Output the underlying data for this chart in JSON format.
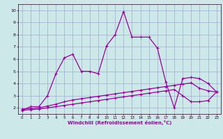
{
  "xlabel": "Windchill (Refroidissement éolien,°C)",
  "bg_color": "#cce8e8",
  "grid_color": "#9999cc",
  "line_color": "#990099",
  "xlim": [
    -0.5,
    23.5
  ],
  "ylim": [
    1.5,
    10.5
  ],
  "xticks": [
    0,
    1,
    2,
    3,
    4,
    5,
    6,
    7,
    8,
    9,
    10,
    11,
    12,
    13,
    14,
    15,
    16,
    17,
    18,
    19,
    20,
    21,
    22,
    23
  ],
  "yticks": [
    2,
    3,
    4,
    5,
    6,
    7,
    8,
    9,
    10
  ],
  "line1_x": [
    0,
    1,
    2,
    3,
    4,
    5,
    6,
    7,
    8,
    9,
    10,
    11,
    12,
    13,
    14,
    15,
    16,
    17,
    18,
    19,
    20,
    21,
    22,
    23
  ],
  "line1_y": [
    1.8,
    2.1,
    2.1,
    3.0,
    4.8,
    6.1,
    6.4,
    5.0,
    5.0,
    4.8,
    7.1,
    8.0,
    9.9,
    7.8,
    7.8,
    7.8,
    6.9,
    4.1,
    2.0,
    4.4,
    4.5,
    4.4,
    4.0,
    3.3
  ],
  "line2_x": [
    0,
    1,
    2,
    3,
    4,
    5,
    6,
    7,
    8,
    9,
    10,
    11,
    12,
    13,
    14,
    15,
    16,
    17,
    18,
    19,
    20,
    21,
    22,
    23
  ],
  "line2_y": [
    1.9,
    1.95,
    2.0,
    2.15,
    2.3,
    2.5,
    2.65,
    2.75,
    2.85,
    2.95,
    3.05,
    3.15,
    3.25,
    3.35,
    3.45,
    3.55,
    3.65,
    3.75,
    3.85,
    3.95,
    4.05,
    3.6,
    3.4,
    3.3
  ],
  "line3_x": [
    0,
    1,
    2,
    3,
    4,
    5,
    6,
    7,
    8,
    9,
    10,
    11,
    12,
    13,
    14,
    15,
    16,
    17,
    18,
    19,
    20,
    21,
    22,
    23
  ],
  "line3_y": [
    1.8,
    1.85,
    1.9,
    2.0,
    2.1,
    2.2,
    2.3,
    2.4,
    2.5,
    2.6,
    2.7,
    2.8,
    2.9,
    3.0,
    3.1,
    3.2,
    3.3,
    3.4,
    3.5,
    3.0,
    2.5,
    2.5,
    2.6,
    3.3
  ]
}
